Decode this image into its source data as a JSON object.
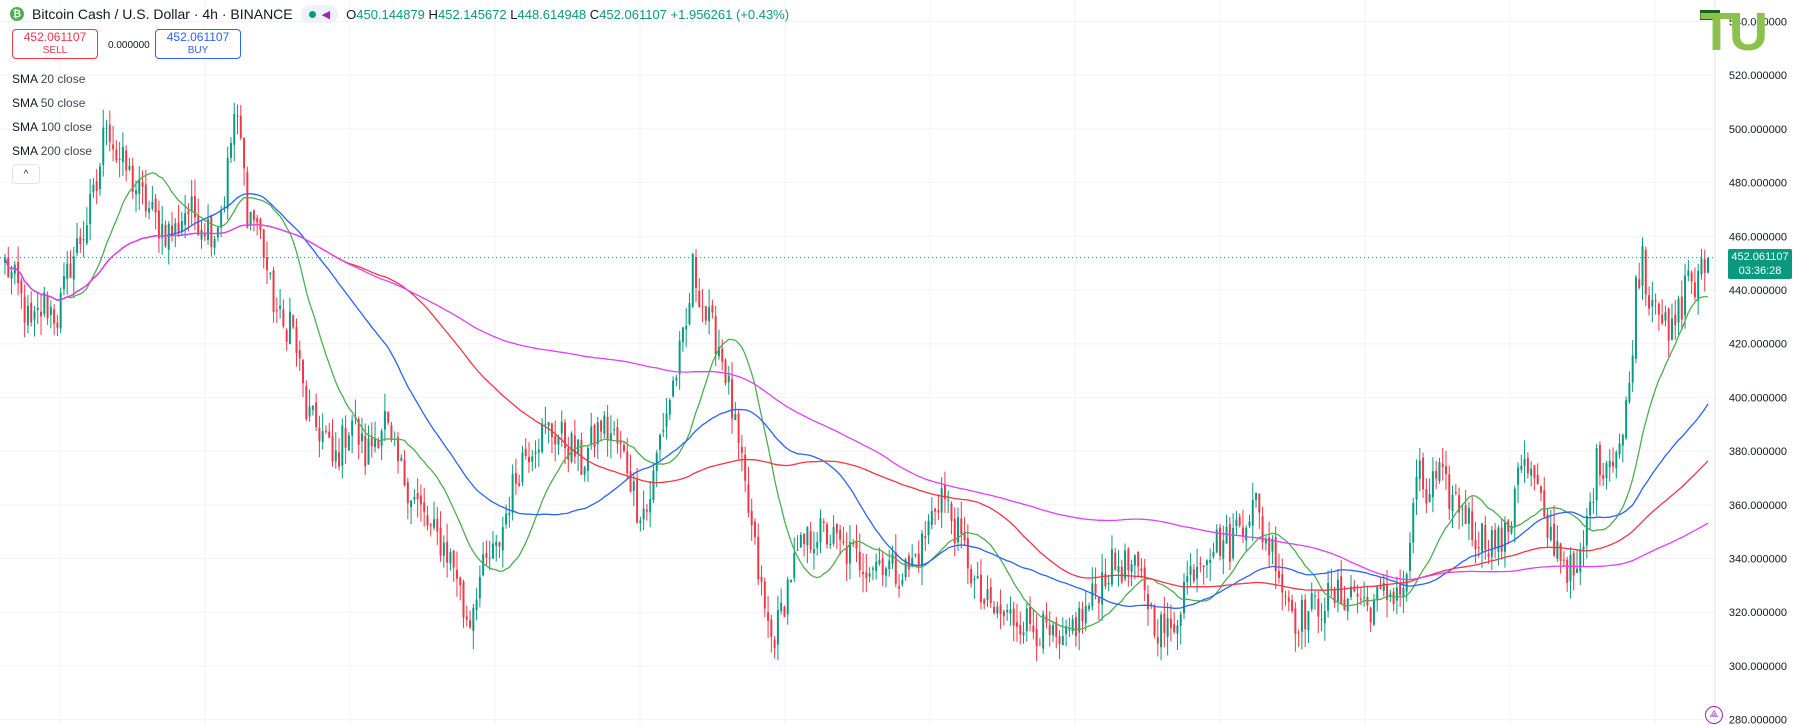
{
  "header": {
    "symbol": "Bitcoin Cash / U.S. Dollar · 4h · BINANCE",
    "coin_icon": "bitcoin-cash-icon",
    "ohlc": {
      "o_label": "O",
      "o": "450.144879",
      "h_label": "H",
      "h": "452.145672",
      "l_label": "L",
      "l": "448.614948",
      "c_label": "C",
      "c": "452.061107",
      "change": "+1.956261 (+0.43%)"
    }
  },
  "trade": {
    "sell_price": "452.061107",
    "sell_label": "SELL",
    "buy_price": "452.061107",
    "buy_label": "BUY",
    "spread": "0.000000"
  },
  "indicators": [
    {
      "name": "SMA",
      "params": "20 close",
      "color": "#4caf50"
    },
    {
      "name": "SMA",
      "params": "50 close",
      "color": "#2962ff"
    },
    {
      "name": "SMA",
      "params": "100 close",
      "color": "#f23645"
    },
    {
      "name": "SMA",
      "params": "200 close",
      "color": "#e040fb"
    }
  ],
  "price_tag": {
    "price": "452.061107",
    "countdown": "03:36:28"
  },
  "logo_text": "TU",
  "colors": {
    "up": "#089981",
    "down": "#f23645",
    "accent": "#2962ff"
  },
  "chart_data": {
    "type": "candlestick",
    "title": "Bitcoin Cash / U.S. Dollar · 4h · BINANCE",
    "ylim": [
      278,
      548
    ],
    "y_ticks": [
      "280.000000",
      "300.000000",
      "320.000000",
      "340.000000",
      "360.000000",
      "380.000000",
      "400.000000",
      "420.000000",
      "440.000000",
      "460.000000",
      "480.000000",
      "500.000000",
      "520.000000",
      "540.000000"
    ],
    "last_price": 452.061107,
    "grid": true,
    "close_path": [
      [
        0,
        450
      ],
      [
        4,
        440
      ],
      [
        8,
        425
      ],
      [
        12,
        435
      ],
      [
        16,
        430
      ],
      [
        20,
        450
      ],
      [
        24,
        462
      ],
      [
        28,
        478
      ],
      [
        31,
        505
      ],
      [
        34,
        490
      ],
      [
        37,
        485
      ],
      [
        40,
        478
      ],
      [
        43,
        472
      ],
      [
        46,
        466
      ],
      [
        49,
        462
      ],
      [
        52,
        462
      ],
      [
        55,
        470
      ],
      [
        58,
        468
      ],
      [
        61,
        465
      ],
      [
        64,
        462
      ],
      [
        67,
        475
      ],
      [
        70,
        505
      ],
      [
        72,
        495
      ],
      [
        74,
        470
      ],
      [
        77,
        465
      ],
      [
        79,
        455
      ],
      [
        81,
        440
      ],
      [
        83,
        432
      ],
      [
        85,
        425
      ],
      [
        87,
        430
      ],
      [
        89,
        418
      ],
      [
        92,
        395
      ],
      [
        94,
        390
      ],
      [
        96,
        388
      ],
      [
        98,
        385
      ],
      [
        100,
        375
      ],
      [
        102,
        380
      ],
      [
        104,
        387
      ],
      [
        106,
        392
      ],
      [
        108,
        385
      ],
      [
        110,
        378
      ],
      [
        112,
        383
      ],
      [
        114,
        388
      ],
      [
        116,
        392
      ],
      [
        118,
        380
      ],
      [
        122,
        370
      ],
      [
        126,
        360
      ],
      [
        130,
        350
      ],
      [
        134,
        345
      ],
      [
        138,
        335
      ],
      [
        140,
        320
      ],
      [
        142,
        318
      ],
      [
        144,
        330
      ],
      [
        146,
        335
      ],
      [
        148,
        340
      ],
      [
        150,
        342
      ],
      [
        152,
        352
      ],
      [
        154,
        362
      ],
      [
        156,
        370
      ],
      [
        158,
        378
      ],
      [
        162,
        385
      ],
      [
        166,
        388
      ],
      [
        170,
        385
      ],
      [
        174,
        380
      ],
      [
        176,
        375
      ],
      [
        178,
        380
      ],
      [
        182,
        390
      ],
      [
        186,
        385
      ],
      [
        190,
        375
      ],
      [
        193,
        360
      ],
      [
        196,
        358
      ],
      [
        198,
        370
      ],
      [
        200,
        385
      ],
      [
        204,
        405
      ],
      [
        208,
        425
      ],
      [
        210,
        448
      ],
      [
        212,
        440
      ],
      [
        214,
        430
      ],
      [
        216,
        425
      ],
      [
        218,
        420
      ],
      [
        220,
        410
      ],
      [
        222,
        395
      ],
      [
        224,
        380
      ],
      [
        226,
        365
      ],
      [
        228,
        350
      ],
      [
        230,
        335
      ],
      [
        232,
        320
      ],
      [
        234,
        310
      ],
      [
        236,
        315
      ],
      [
        238,
        325
      ],
      [
        240,
        335
      ],
      [
        244,
        345
      ],
      [
        248,
        350
      ],
      [
        252,
        348
      ],
      [
        256,
        343
      ],
      [
        260,
        340
      ],
      [
        264,
        338
      ],
      [
        268,
        340
      ],
      [
        272,
        335
      ],
      [
        276,
        336
      ],
      [
        280,
        345
      ],
      [
        282,
        352
      ],
      [
        284,
        360
      ],
      [
        286,
        365
      ],
      [
        288,
        358
      ],
      [
        290,
        352
      ],
      [
        292,
        345
      ],
      [
        294,
        340
      ],
      [
        296,
        330
      ],
      [
        298,
        325
      ],
      [
        300,
        322
      ],
      [
        302,
        320
      ],
      [
        306,
        318
      ],
      [
        310,
        318
      ],
      [
        314,
        315
      ],
      [
        318,
        312
      ],
      [
        322,
        305
      ],
      [
        324,
        308
      ],
      [
        326,
        315
      ],
      [
        330,
        320
      ],
      [
        332,
        325
      ],
      [
        336,
        335
      ],
      [
        340,
        338
      ],
      [
        344,
        336
      ],
      [
        348,
        330
      ],
      [
        350,
        320
      ],
      [
        352,
        315
      ],
      [
        356,
        312
      ],
      [
        358,
        320
      ],
      [
        360,
        330
      ],
      [
        364,
        340
      ],
      [
        368,
        345
      ],
      [
        372,
        347
      ],
      [
        374,
        345
      ],
      [
        376,
        352
      ],
      [
        380,
        358
      ],
      [
        382,
        360
      ],
      [
        384,
        350
      ],
      [
        386,
        345
      ],
      [
        388,
        342
      ],
      [
        390,
        330
      ],
      [
        392,
        325
      ],
      [
        394,
        318
      ],
      [
        398,
        320
      ],
      [
        400,
        322
      ],
      [
        404,
        325
      ],
      [
        408,
        326
      ],
      [
        412,
        328
      ],
      [
        416,
        322
      ],
      [
        420,
        325
      ],
      [
        424,
        328
      ],
      [
        428,
        330
      ],
      [
        430,
        362
      ],
      [
        432,
        370
      ],
      [
        434,
        362
      ],
      [
        436,
        368
      ],
      [
        438,
        370
      ],
      [
        440,
        365
      ],
      [
        444,
        360
      ],
      [
        446,
        358
      ],
      [
        448,
        350
      ],
      [
        452,
        348
      ],
      [
        456,
        346
      ],
      [
        458,
        347
      ],
      [
        460,
        356
      ],
      [
        462,
        378
      ],
      [
        466,
        370
      ],
      [
        468,
        365
      ],
      [
        470,
        352
      ],
      [
        474,
        345
      ],
      [
        476,
        340
      ],
      [
        478,
        335
      ],
      [
        480,
        332
      ],
      [
        482,
        345
      ],
      [
        484,
        360
      ],
      [
        486,
        375
      ],
      [
        490,
        378
      ],
      [
        494,
        385
      ],
      [
        496,
        405
      ],
      [
        498,
        440
      ],
      [
        500,
        455
      ],
      [
        502,
        435
      ],
      [
        504,
        442
      ],
      [
        506,
        430
      ],
      [
        508,
        420
      ],
      [
        510,
        428
      ],
      [
        512,
        435
      ],
      [
        514,
        448
      ],
      [
        516,
        440
      ],
      [
        518,
        446
      ],
      [
        520,
        452
      ]
    ],
    "series": [
      {
        "name": "SMA 20 close",
        "color": "#4caf50"
      },
      {
        "name": "SMA 50 close",
        "color": "#2962ff"
      },
      {
        "name": "SMA 100 close",
        "color": "#f23645"
      },
      {
        "name": "SMA 200 close",
        "color": "#e040fb"
      }
    ]
  }
}
